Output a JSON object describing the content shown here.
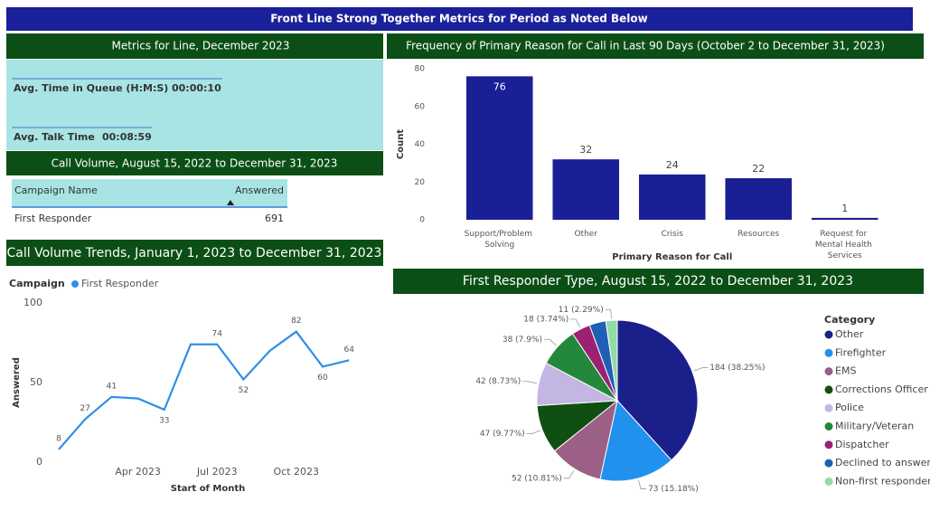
{
  "header": {
    "title": "Front Line Strong Together Metrics for Period as Noted Below"
  },
  "metrics": {
    "title": "Metrics for Line, December 2023",
    "items": [
      {
        "label": "Avg. Time in Queue (H:M:S)",
        "value": "00:00:10"
      },
      {
        "label": "Avg. Talk Time",
        "value": "00:08:59"
      }
    ]
  },
  "table": {
    "title": "Call Volume, August 15, 2022 to December 31, 2023",
    "columns": [
      "Campaign Name",
      "Answered"
    ],
    "rows": [
      [
        "First Responder",
        691
      ]
    ]
  },
  "chart_data": [
    {
      "type": "bar",
      "title": "Frequency of Primary Reason for Call in Last 90 Days (October 2 to December 31, 2023)",
      "categories": [
        "Support/Problem Solving",
        "Other",
        "Crisis",
        "Resources",
        "Request for Mental Health Services"
      ],
      "values": [
        76,
        32,
        24,
        22,
        1
      ],
      "color": "#1a1f96",
      "ylim": [
        0,
        80
      ],
      "yticks": [
        0,
        20,
        40,
        60,
        80
      ],
      "xlabel": "Primary Reason for Call",
      "ylabel": "Count",
      "grid": false
    },
    {
      "type": "line",
      "title": "Call Volume Trends, January 1, 2023 to December 31, 2023",
      "legend_title": "Campaign",
      "x": [
        "2023-01",
        "2023-02",
        "2023-03",
        "2023-04",
        "2023-05",
        "2023-06",
        "2023-07",
        "2023-08",
        "2023-09",
        "2023-10",
        "2023-11",
        "2023-12"
      ],
      "xticks": [
        {
          "value": "2023-04",
          "label": "Apr 2023"
        },
        {
          "value": "2023-07",
          "label": "Jul 2023"
        },
        {
          "value": "2023-10",
          "label": "Oct 2023"
        }
      ],
      "series": [
        {
          "name": "First Responder",
          "color": "#2f8ee8",
          "values": [
            8,
            27,
            41,
            40,
            33,
            74,
            74,
            52,
            70,
            82,
            60,
            64
          ],
          "value_labels": [
            "8",
            "27",
            "41",
            null,
            "33",
            null,
            "74",
            "52",
            null,
            "82",
            "60",
            "64"
          ]
        }
      ],
      "ylim": [
        0,
        100
      ],
      "yticks": [
        0,
        50,
        100
      ],
      "xlabel": "Start of Month",
      "ylabel": "Answered",
      "grid": false
    },
    {
      "type": "pie",
      "title": "First Responder Type, August 15, 2022 to December 31, 2023",
      "legend_title": "Category",
      "categories": [
        "Other",
        "Firefighter",
        "EMS",
        "Corrections Officer",
        "Police",
        "Military/Veteran",
        "Dispatcher",
        "Declined to answer",
        "Non-first responder"
      ],
      "values": [
        184,
        73,
        52,
        47,
        42,
        38,
        18,
        16,
        11
      ],
      "value_labels": [
        "184 (38.25%)",
        "73 (15.18%)",
        "52 (10.81%)",
        "47 (9.77%)",
        "42 (8.73%)",
        "38 (7.9%)",
        "18 (3.74%)",
        null,
        "11 (2.29%)"
      ],
      "colors": [
        "#1b1f8a",
        "#2191ee",
        "#9c5f86",
        "#0f4f12",
        "#c3b6e2",
        "#23883a",
        "#9b2172",
        "#1f5fb5",
        "#92dba5"
      ]
    }
  ]
}
